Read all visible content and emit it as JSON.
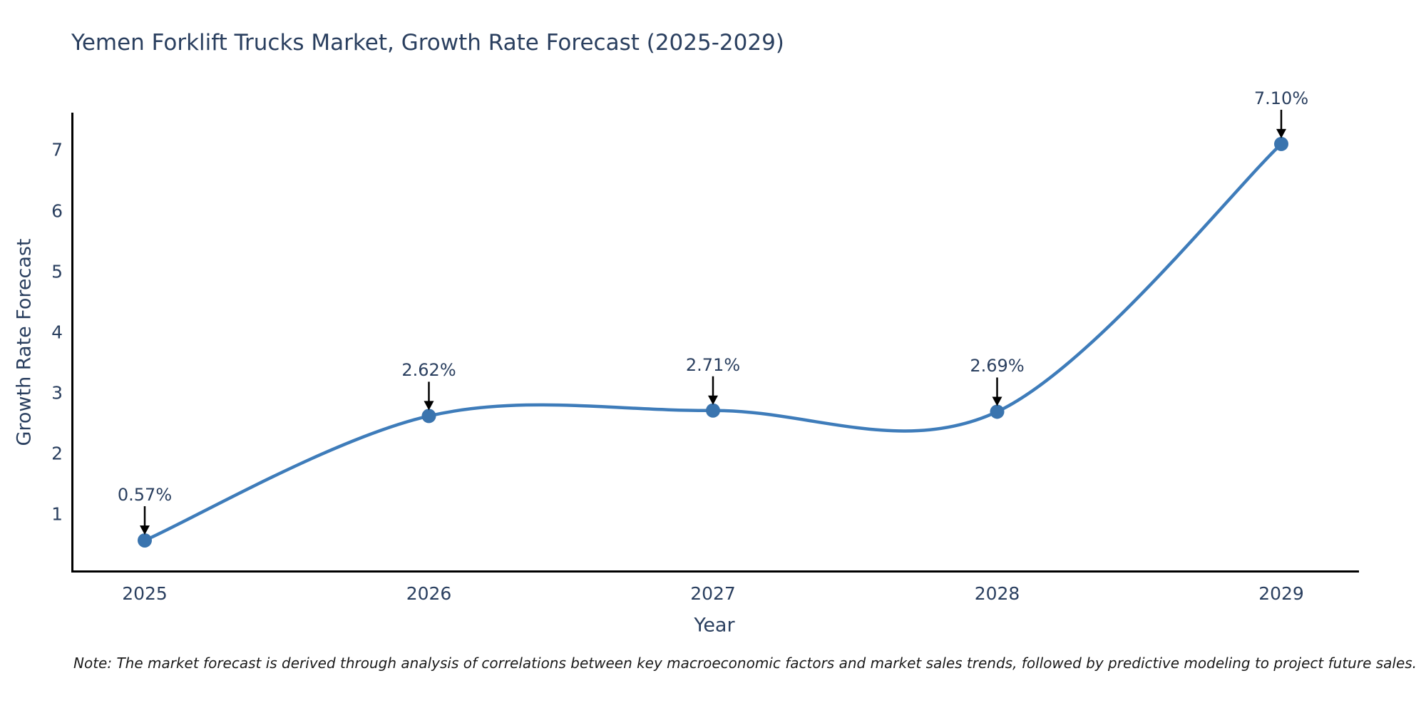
{
  "title": "Yemen Forklift Trucks Market, Growth Rate Forecast (2025-2029)",
  "note": "Note: The market forecast is derived through analysis of correlations between key macroeconomic factors and market sales trends, followed by predictive modeling to project future sales.",
  "chart_data": {
    "type": "line",
    "line_shape": "spline",
    "title": "Yemen Forklift Trucks Market, Growth Rate Forecast (2025-2029)",
    "xlabel": "Year",
    "ylabel": "Growth Rate Forecast",
    "x": [
      2025,
      2026,
      2027,
      2028,
      2029
    ],
    "values": [
      0.57,
      2.62,
      2.71,
      2.69,
      7.1
    ],
    "point_labels": [
      "0.57%",
      "2.62%",
      "2.71%",
      "2.69%",
      "7.10%"
    ],
    "x_tick_labels": [
      "2025",
      "2026",
      "2027",
      "2028",
      "2029"
    ],
    "y_ticks": [
      1,
      2,
      3,
      4,
      5,
      6,
      7
    ],
    "y_tick_labels": [
      "1",
      "2",
      "3",
      "4",
      "5",
      "6",
      "7"
    ],
    "xlim": [
      2024.74,
      2029.27
    ],
    "ylim": [
      0,
      7.6
    ],
    "grid": false,
    "legend": false,
    "markers": true,
    "annotation_arrows": true
  },
  "colors": {
    "background": "#ffffff",
    "line": "#3e7cba",
    "marker": "#3a74ae",
    "axis": "#000000",
    "arrow": "#000000",
    "text": "#2a3f5f",
    "note_text": "#1a1a1a"
  }
}
